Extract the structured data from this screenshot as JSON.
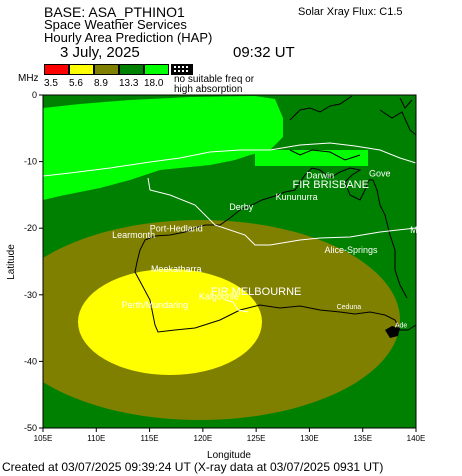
{
  "header": {
    "base": "BASE: ASA_PTHINO1",
    "service": "Space Weather Services",
    "product": "Hourly Area Prediction (HAP)",
    "date": "3 July, 2025",
    "time": "09:32 UT",
    "xray": "Solar Xray Flux: C1.5"
  },
  "legend": {
    "unit": "MHz",
    "swatches": [
      {
        "color": "#ff0000",
        "label": "3.5"
      },
      {
        "color": "#ffff00",
        "label": "5.6"
      },
      {
        "color": "#808000",
        "label": "8.9"
      },
      {
        "color": "#008000",
        "label": "13.3"
      },
      {
        "color": "#00ff00",
        "label": "18.0"
      }
    ],
    "no_freq_line1": "no suitable freq or",
    "no_freq_line2": "high absorption"
  },
  "map": {
    "xlabel": "Longitude",
    "ylabel": "Latitude",
    "x_ticks": [
      "105E",
      "110E",
      "115E",
      "120E",
      "125E",
      "130E",
      "135E",
      "140E"
    ],
    "y_ticks": [
      "0",
      "-10",
      "-20",
      "-30",
      "-40",
      "-50"
    ],
    "x_range": [
      105,
      140
    ],
    "y_range": [
      -50,
      0
    ],
    "colors": {
      "dark_green": "#008000",
      "light_green": "#00ff00",
      "olive": "#808000",
      "yellow": "#ffff00",
      "ocean_bg": "#008000"
    },
    "places": [
      {
        "name": "Darwin",
        "lon": 131.0,
        "lat": -12.5
      },
      {
        "name": "Gove",
        "lon": 136.6,
        "lat": -12.2
      },
      {
        "name": "FIR BRISBANE",
        "lon": 132.0,
        "lat": -14.0
      },
      {
        "name": "Kununurra",
        "lon": 128.8,
        "lat": -15.8
      },
      {
        "name": "Derby",
        "lon": 123.6,
        "lat": -17.3
      },
      {
        "name": "Port-Hedland",
        "lon": 117.5,
        "lat": -20.5
      },
      {
        "name": "Learmonth",
        "lon": 113.5,
        "lat": -21.5
      },
      {
        "name": "Alice-Springs",
        "lon": 133.9,
        "lat": -23.7
      },
      {
        "name": "M",
        "lon": 139.8,
        "lat": -20.7
      },
      {
        "name": "Meekatharra",
        "lon": 117.5,
        "lat": -26.6
      },
      {
        "name": "Kalgoorlie",
        "lon": 121.5,
        "lat": -30.7
      },
      {
        "name": "FIR MELBOURNE",
        "lon": 125.0,
        "lat": -30.0
      },
      {
        "name": "Perth/Mundaring",
        "lon": 115.5,
        "lat": -32.0
      },
      {
        "name": "Ceduna",
        "lon": 133.7,
        "lat": -32.1
      },
      {
        "name": "Ade",
        "lon": 138.6,
        "lat": -34.9
      }
    ]
  },
  "footer": "Created at 03/07/2025 09:39:24 UT (X-ray data at 03/07/2025 0931 UT)"
}
